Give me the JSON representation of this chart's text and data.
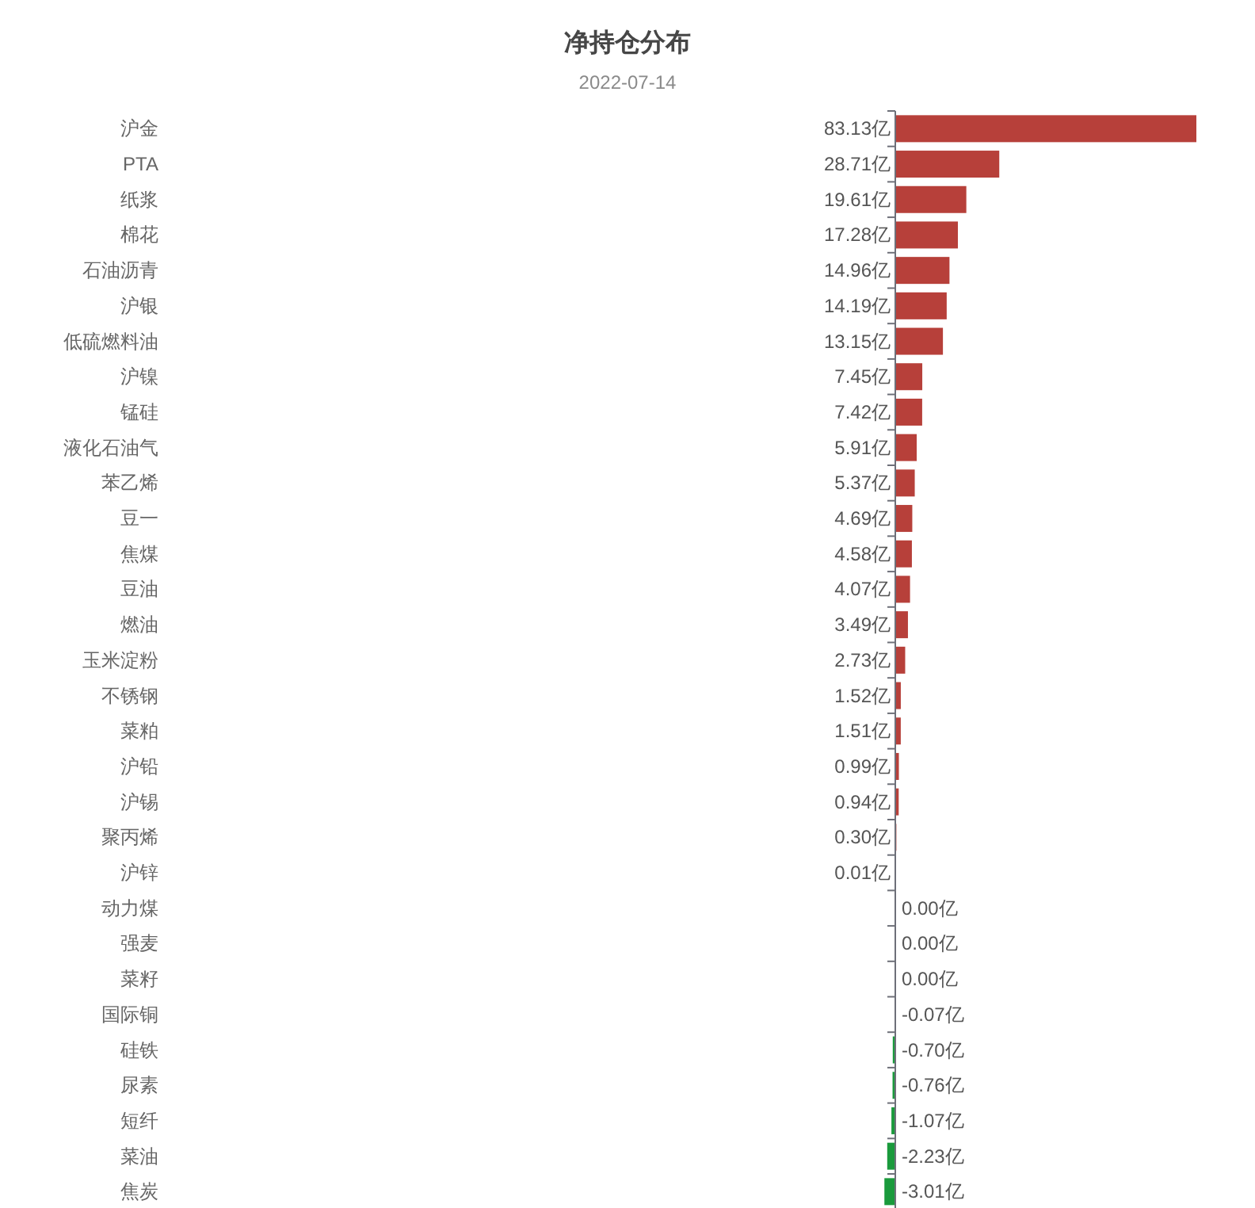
{
  "chart_data": {
    "type": "bar",
    "orientation": "horizontal",
    "title": "净持仓分布",
    "subtitle": "2022-07-14",
    "categories": [
      "沪金",
      "PTA",
      "纸浆",
      "棉花",
      "石油沥青",
      "沪银",
      "低硫燃料油",
      "沪镍",
      "锰硅",
      "液化石油气",
      "苯乙烯",
      "豆一",
      "焦煤",
      "豆油",
      "燃油",
      "玉米淀粉",
      "不锈钢",
      "菜粕",
      "沪铅",
      "沪锡",
      "聚丙烯",
      "沪锌",
      "动力煤",
      "强麦",
      "菜籽",
      "国际铜",
      "硅铁",
      "尿素",
      "短纤",
      "菜油",
      "焦炭"
    ],
    "values": [
      83.13,
      28.71,
      19.61,
      17.28,
      14.96,
      14.19,
      13.15,
      7.45,
      7.42,
      5.91,
      5.37,
      4.69,
      4.58,
      4.07,
      3.49,
      2.73,
      1.52,
      1.51,
      0.99,
      0.94,
      0.3,
      0.01,
      0.0,
      0.0,
      0.0,
      -0.07,
      -0.7,
      -0.76,
      -1.07,
      -2.23,
      -3.01
    ],
    "value_labels": [
      "83.13亿",
      "28.71亿",
      "19.61亿",
      "17.28亿",
      "14.96亿",
      "14.19亿",
      "13.15亿",
      "7.45亿",
      "7.42亿",
      "5.91亿",
      "5.37亿",
      "4.69亿",
      "4.58亿",
      "4.07亿",
      "3.49亿",
      "2.73亿",
      "1.52亿",
      "1.51亿",
      "0.99亿",
      "0.94亿",
      "0.30亿",
      "0.01亿",
      "0.00亿",
      "0.00亿",
      "0.00亿",
      "-0.07亿",
      "-0.70亿",
      "-0.76亿",
      "-1.07亿",
      "-2.23亿",
      "-3.01亿"
    ],
    "colors": [
      "#b7403a",
      "#b7403a",
      "#b7403a",
      "#b7403a",
      "#b7403a",
      "#b7403a",
      "#b7403a",
      "#b7403a",
      "#b7403a",
      "#b7403a",
      "#b7403a",
      "#b7403a",
      "#b7403a",
      "#b7403a",
      "#b7403a",
      "#b7403a",
      "#b7403a",
      "#b7403a",
      "#b7403a",
      "#b7403a",
      "#b7403a",
      "#b7403a",
      "#b7403a",
      "#b7403a",
      "#b7403a",
      "#1a9a3c",
      "#1a9a3c",
      "#1a9a3c",
      "#1a9a3c",
      "#1a9a3c",
      "#1a9a3c"
    ]
  }
}
